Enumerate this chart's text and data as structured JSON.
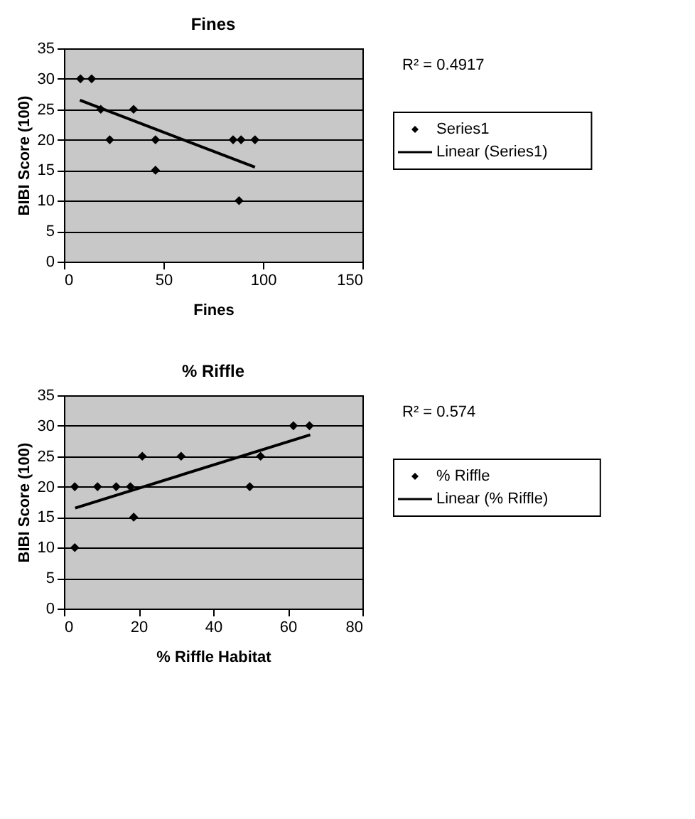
{
  "chart_data": [
    {
      "type": "scatter",
      "title": "Fines",
      "xlabel": "Fines",
      "ylabel": "BIBI Score (100)",
      "xlim": [
        0,
        150
      ],
      "xticks": [
        0,
        50,
        100,
        150
      ],
      "ylim": [
        0,
        35
      ],
      "yticks": [
        0,
        5,
        10,
        15,
        20,
        25,
        30,
        35
      ],
      "grid": "y",
      "legend": "right",
      "annotations": [
        "R² = 0.4917"
      ],
      "series": [
        {
          "name": "Series1",
          "marker": "diamond",
          "color": "#000000",
          "x": [
            8.3,
            13.9,
            18.5,
            23,
            35,
            46,
            46,
            85,
            89,
            96,
            88
          ],
          "values": [
            30,
            30,
            25,
            20,
            25,
            20,
            15,
            20,
            20,
            20,
            10
          ]
        },
        {
          "name": "Linear (Series1)",
          "type": "line",
          "marker": "none",
          "color": "#000000",
          "x": [
            8,
            96
          ],
          "values": [
            26.5,
            15.5
          ]
        }
      ]
    },
    {
      "type": "scatter",
      "title": "% Riffle",
      "xlabel": "% Riffle Habitat",
      "ylabel": "BIBI Score (100)",
      "xlim": [
        0,
        80
      ],
      "xticks": [
        0,
        20,
        40,
        60,
        80
      ],
      "ylim": [
        0,
        35
      ],
      "yticks": [
        0,
        5,
        10,
        15,
        20,
        25,
        30,
        35
      ],
      "grid": "y",
      "legend": "right",
      "annotations": [
        "R² = 0.574"
      ],
      "series": [
        {
          "name": "% Riffle",
          "marker": "diamond",
          "color": "#000000",
          "x": [
            2.9,
            2.9,
            9,
            14,
            17.8,
            18.7,
            21,
            31.4,
            49.8,
            52.7,
            61.5,
            65.8
          ],
          "values": [
            20,
            10,
            20,
            20,
            20,
            15,
            25,
            25,
            20,
            25,
            30,
            30
          ]
        },
        {
          "name": "Linear (% Riffle)",
          "type": "line",
          "marker": "none",
          "color": "#000000",
          "x": [
            3,
            66
          ],
          "values": [
            16.5,
            28.5
          ]
        }
      ]
    }
  ]
}
